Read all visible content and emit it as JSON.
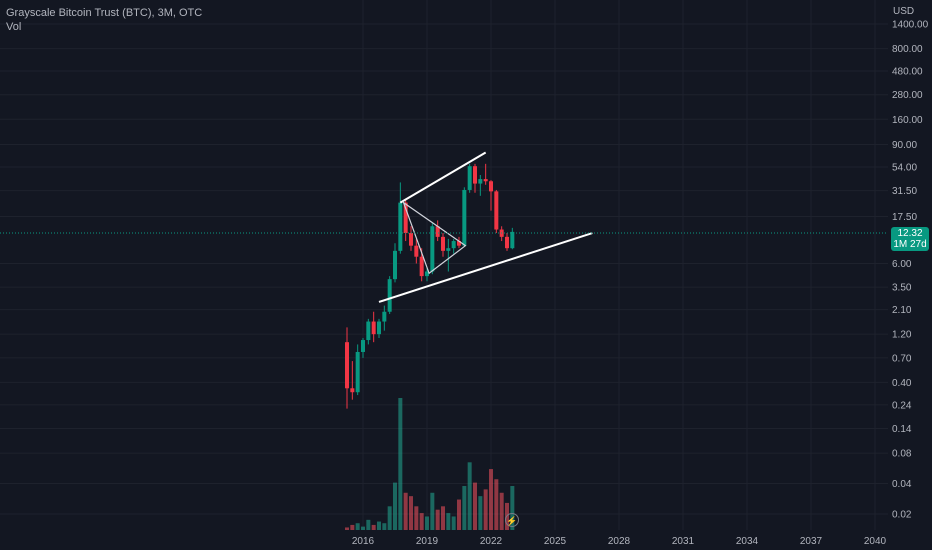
{
  "header": {
    "title": "Grayscale Bitcoin Trust (BTC), 3M, OTC",
    "volume_label": "Vol"
  },
  "price_axis": {
    "currency": "USD",
    "labels": [
      "1400.00",
      "800.00",
      "480.00",
      "280.00",
      "160.00",
      "90.00",
      "54.00",
      "31.50",
      "17.50",
      "6.00",
      "3.50",
      "2.10",
      "1.20",
      "0.70",
      "0.40",
      "0.24",
      "0.14",
      "0.08",
      "0.04",
      "0.02"
    ]
  },
  "last_price": {
    "value": "12.32",
    "countdown": "1M 27d",
    "color": "#089981"
  },
  "time_axis": {
    "labels": [
      "2016",
      "2019",
      "2022",
      "2025",
      "2028",
      "2031",
      "2034",
      "2037",
      "2040"
    ]
  },
  "colors": {
    "background": "#131722",
    "up": "#089981",
    "down": "#f23645",
    "volume_up": "#22ab94",
    "volume_down": "#f7525f",
    "grid": "#1e222d",
    "trendline": "#ffffff"
  },
  "icons": {
    "replay": "lightning-bolt-icon"
  },
  "chart_data": {
    "type": "candlestick",
    "title": "Grayscale Bitcoin Trust (BTC), 3M, OTC",
    "y_scale": "log",
    "ylim": [
      0.2,
      1800
    ],
    "xlim": [
      2014.7,
      2040.5
    ],
    "grid": true,
    "candles": [
      {
        "t": 2015.25,
        "o": 1.0,
        "h": 1.4,
        "l": 0.22,
        "c": 0.35
      },
      {
        "t": 2015.5,
        "o": 0.35,
        "h": 0.65,
        "l": 0.27,
        "c": 0.32
      },
      {
        "t": 2015.75,
        "o": 0.32,
        "h": 0.95,
        "l": 0.3,
        "c": 0.8
      },
      {
        "t": 2016.0,
        "o": 0.8,
        "h": 1.1,
        "l": 0.7,
        "c": 1.05
      },
      {
        "t": 2016.25,
        "o": 1.05,
        "h": 1.7,
        "l": 0.95,
        "c": 1.6
      },
      {
        "t": 2016.5,
        "o": 1.6,
        "h": 2.0,
        "l": 1.0,
        "c": 1.2
      },
      {
        "t": 2016.75,
        "o": 1.2,
        "h": 1.7,
        "l": 1.1,
        "c": 1.6
      },
      {
        "t": 2017.0,
        "o": 1.6,
        "h": 2.3,
        "l": 1.3,
        "c": 2.0
      },
      {
        "t": 2017.25,
        "o": 2.0,
        "h": 4.5,
        "l": 1.9,
        "c": 4.2
      },
      {
        "t": 2017.5,
        "o": 4.2,
        "h": 9.5,
        "l": 3.9,
        "c": 8.0
      },
      {
        "t": 2017.75,
        "o": 8.0,
        "h": 38.0,
        "l": 7.5,
        "c": 24.0
      },
      {
        "t": 2018.0,
        "o": 24.0,
        "h": 26.0,
        "l": 10.0,
        "c": 12.0
      },
      {
        "t": 2018.25,
        "o": 12.0,
        "h": 14.0,
        "l": 8.0,
        "c": 9.0
      },
      {
        "t": 2018.5,
        "o": 9.0,
        "h": 10.5,
        "l": 6.0,
        "c": 7.0
      },
      {
        "t": 2018.75,
        "o": 7.0,
        "h": 8.5,
        "l": 4.0,
        "c": 4.5
      },
      {
        "t": 2019.0,
        "o": 4.5,
        "h": 5.5,
        "l": 4.0,
        "c": 5.0
      },
      {
        "t": 2019.25,
        "o": 5.0,
        "h": 15.0,
        "l": 4.7,
        "c": 14.0
      },
      {
        "t": 2019.5,
        "o": 14.0,
        "h": 16.0,
        "l": 10.0,
        "c": 11.0
      },
      {
        "t": 2019.75,
        "o": 11.0,
        "h": 12.0,
        "l": 7.0,
        "c": 8.0
      },
      {
        "t": 2020.0,
        "o": 8.0,
        "h": 10.5,
        "l": 5.0,
        "c": 8.5
      },
      {
        "t": 2020.25,
        "o": 8.5,
        "h": 10.5,
        "l": 7.5,
        "c": 10.0
      },
      {
        "t": 2020.5,
        "o": 10.0,
        "h": 11.0,
        "l": 8.5,
        "c": 9.0
      },
      {
        "t": 2020.75,
        "o": 9.0,
        "h": 34.0,
        "l": 8.8,
        "c": 32.0
      },
      {
        "t": 2021.0,
        "o": 32.0,
        "h": 58.0,
        "l": 30.0,
        "c": 55.0
      },
      {
        "t": 2021.25,
        "o": 55.0,
        "h": 58.0,
        "l": 30.0,
        "c": 37.0
      },
      {
        "t": 2021.5,
        "o": 37.0,
        "h": 45.0,
        "l": 28.0,
        "c": 41.0
      },
      {
        "t": 2021.75,
        "o": 41.0,
        "h": 58.0,
        "l": 36.0,
        "c": 39.0
      },
      {
        "t": 2022.0,
        "o": 39.0,
        "h": 40.0,
        "l": 20.0,
        "c": 31.0
      },
      {
        "t": 2022.25,
        "o": 31.0,
        "h": 32.0,
        "l": 12.0,
        "c": 13.0
      },
      {
        "t": 2022.5,
        "o": 13.0,
        "h": 14.0,
        "l": 10.0,
        "c": 11.0
      },
      {
        "t": 2022.75,
        "o": 11.0,
        "h": 12.0,
        "l": 8.0,
        "c": 8.5
      },
      {
        "t": 2023.0,
        "o": 8.5,
        "h": 13.5,
        "l": 8.3,
        "c": 12.32
      }
    ],
    "volume": [
      1.5,
      3,
      4,
      2,
      6,
      3,
      5,
      4,
      14,
      28,
      78,
      22,
      20,
      14,
      10,
      8,
      22,
      12,
      14,
      10,
      8,
      18,
      26,
      40,
      28,
      20,
      24,
      36,
      30,
      22,
      16,
      26
    ],
    "trendlines": [
      {
        "from": [
          2017.75,
          24.0
        ],
        "to": [
          2021.75,
          75.0
        ]
      },
      {
        "from": [
          2016.75,
          2.5
        ],
        "to": [
          2026.75,
          12.0
        ]
      }
    ],
    "triangle": [
      [
        2017.9,
        24.0
      ],
      [
        2019.1,
        4.8
      ],
      [
        2020.8,
        9.0
      ]
    ]
  }
}
